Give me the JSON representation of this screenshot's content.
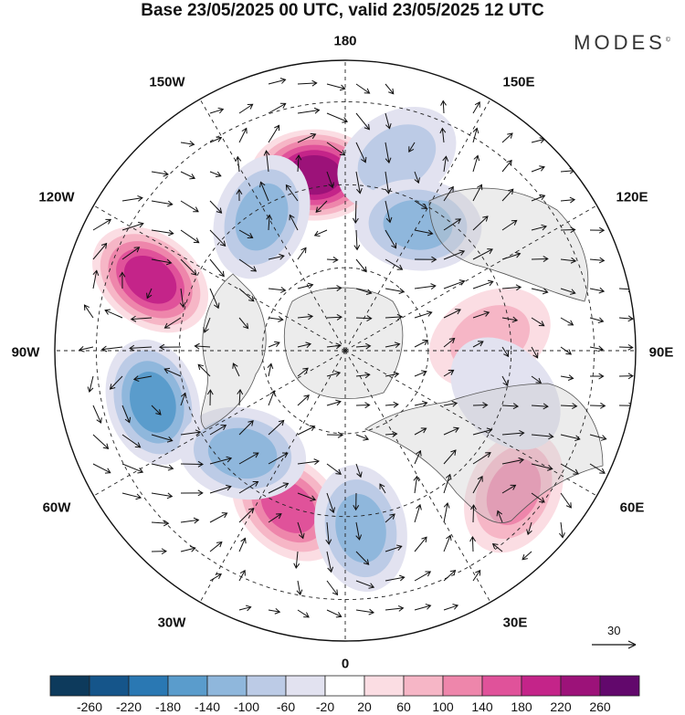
{
  "title": "Base 23/05/2025 00 UTC, valid 23/05/2025 12 UTC",
  "brand": "MODES",
  "brand_mark": "©",
  "longitude_labels": {
    "top": "180",
    "bottom": "0",
    "left": "90W",
    "right": "90E",
    "upper_left_1": "150W",
    "upper_left_2": "120W",
    "upper_right_1": "150E",
    "upper_right_2": "120E",
    "lower_left_1": "60W",
    "lower_left_2": "30W",
    "lower_right_1": "60E",
    "lower_right_2": "30E"
  },
  "vector_scale": {
    "label": "30"
  },
  "colorbar": {
    "colors": [
      "#0d3a5c",
      "#15558a",
      "#2a78b3",
      "#5a9ccc",
      "#8fb7dc",
      "#bccbe6",
      "#e2e2f0",
      "#ffffff",
      "#fbdde3",
      "#f6b6c6",
      "#ee86ab",
      "#e0529a",
      "#c42489",
      "#9c1279",
      "#62086c"
    ],
    "tick_labels": [
      "-260",
      "-220",
      "-180",
      "-140",
      "-100",
      "-60",
      "-20",
      "20",
      "60",
      "100",
      "140",
      "180",
      "220",
      "260"
    ]
  },
  "anomaly_centers": [
    {
      "lon": -170,
      "lat": 47,
      "value": 240,
      "kind": "high"
    },
    {
      "lon": -110,
      "lat": 40,
      "value": 200,
      "kind": "high"
    },
    {
      "lon": -75,
      "lat": 42,
      "value": -190,
      "kind": "low"
    },
    {
      "lon": -148,
      "lat": 52,
      "value": -140,
      "kind": "low"
    },
    {
      "lon": 165,
      "lat": 42,
      "value": -110,
      "kind": "low"
    },
    {
      "lon": 150,
      "lat": 55,
      "value": -120,
      "kind": "low"
    },
    {
      "lon": -20,
      "lat": 50,
      "value": 190,
      "kind": "high"
    },
    {
      "lon": 5,
      "lat": 47,
      "value": -150,
      "kind": "low"
    },
    {
      "lon": 50,
      "lat": 37,
      "value": 150,
      "kind": "high"
    },
    {
      "lon": 95,
      "lat": 55,
      "value": 90,
      "kind": "high"
    },
    {
      "lon": -45,
      "lat": 55,
      "value": -130,
      "kind": "low"
    },
    {
      "lon": 75,
      "lat": 50,
      "value": -60,
      "kind": "low"
    }
  ]
}
